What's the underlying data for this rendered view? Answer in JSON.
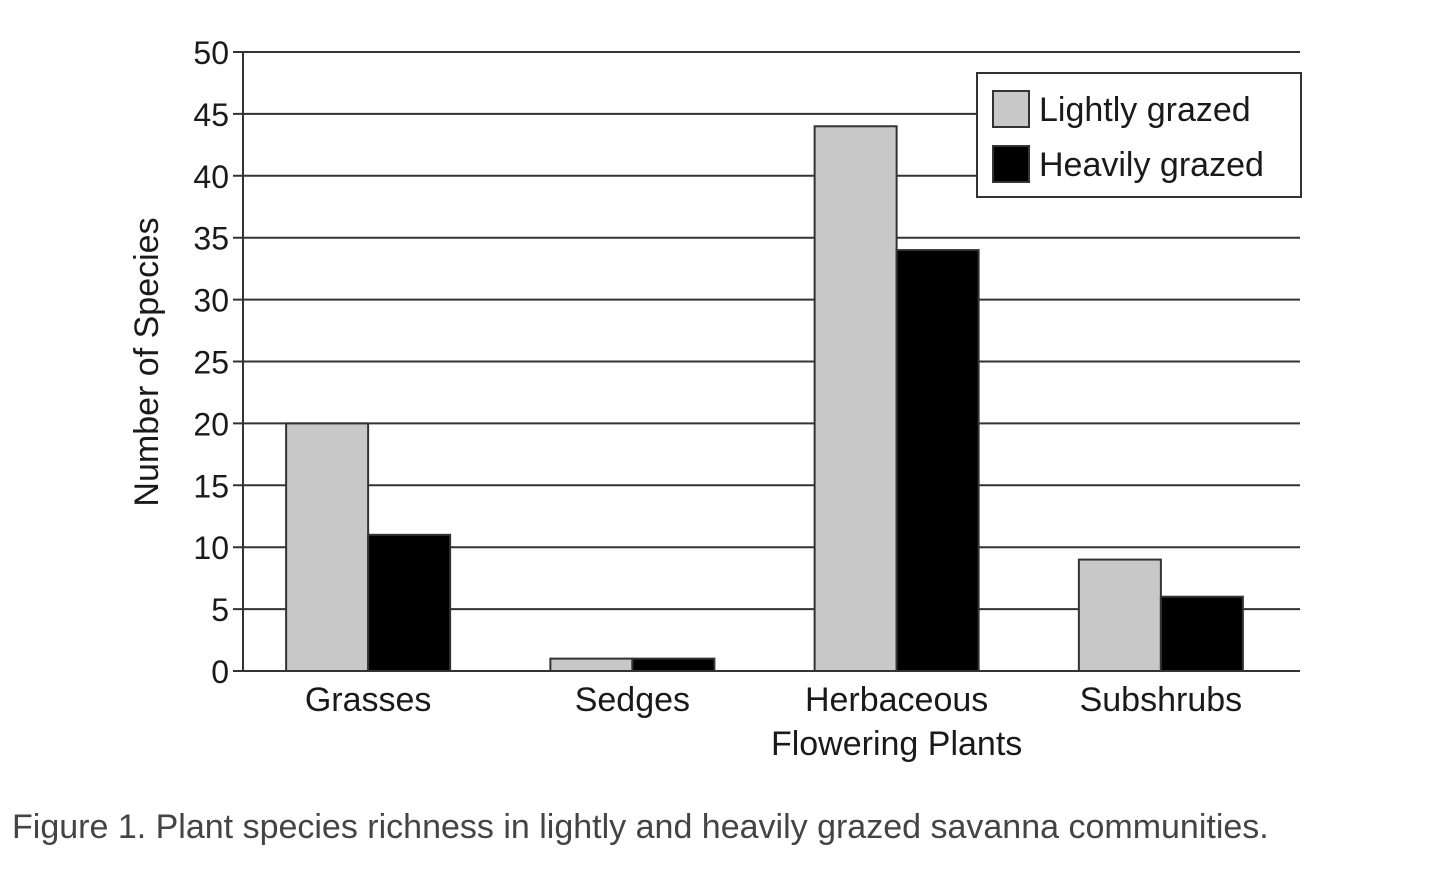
{
  "chart_data": {
    "type": "bar",
    "categories": [
      "Grasses",
      "Sedges",
      "Herbaceous Flowering Plants",
      "Subshrubs"
    ],
    "category_label_lines": [
      [
        "Grasses"
      ],
      [
        "Sedges"
      ],
      [
        "Herbaceous",
        "Flowering Plants"
      ],
      [
        "Subshrubs"
      ]
    ],
    "series": [
      {
        "name": "Lightly grazed",
        "values": [
          20,
          1,
          44,
          9
        ],
        "color": "#c8c8c8"
      },
      {
        "name": "Heavily grazed",
        "values": [
          11,
          1,
          34,
          6
        ],
        "color": "#000000"
      }
    ],
    "ylabel": "Number of Species",
    "xlabel": "",
    "ylim": [
      0,
      50
    ],
    "yticks": [
      0,
      5,
      10,
      15,
      20,
      25,
      30,
      35,
      40,
      45,
      50
    ],
    "grid": true,
    "legend_position": "top-right"
  },
  "caption": "Figure 1. Plant species richness in lightly and heavily grazed savanna communities."
}
